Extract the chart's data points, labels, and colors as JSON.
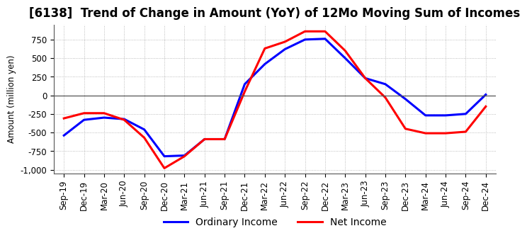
{
  "title": "[6138]  Trend of Change in Amount (YoY) of 12Mo Moving Sum of Incomes",
  "ylabel": "Amount (million yen)",
  "ylim": [
    -1050,
    950
  ],
  "yticks": [
    -1000,
    -750,
    -500,
    -250,
    0,
    250,
    500,
    750
  ],
  "background_color": "#ffffff",
  "grid_color": "#aaaaaa",
  "labels": [
    "Sep-19",
    "Dec-19",
    "Mar-20",
    "Jun-20",
    "Sep-20",
    "Dec-20",
    "Mar-21",
    "Jun-21",
    "Sep-21",
    "Dec-21",
    "Mar-22",
    "Jun-22",
    "Sep-22",
    "Dec-22",
    "Mar-23",
    "Jun-23",
    "Sep-23",
    "Dec-23",
    "Mar-24",
    "Jun-24",
    "Sep-24",
    "Dec-24"
  ],
  "ordinary_income": [
    -540,
    -330,
    -300,
    -320,
    -460,
    -820,
    -810,
    -590,
    -590,
    150,
    420,
    620,
    750,
    760,
    500,
    230,
    150,
    -50,
    -270,
    -270,
    -250,
    10
  ],
  "net_income": [
    -310,
    -240,
    -240,
    -330,
    -570,
    -980,
    -820,
    -590,
    -590,
    50,
    630,
    720,
    860,
    860,
    600,
    230,
    -30,
    -450,
    -510,
    -510,
    -490,
    -150
  ],
  "ordinary_color": "#0000ff",
  "net_color": "#ff0000",
  "line_width": 2.2,
  "title_fontsize": 12,
  "tick_fontsize": 8.5,
  "legend_fontsize": 10
}
